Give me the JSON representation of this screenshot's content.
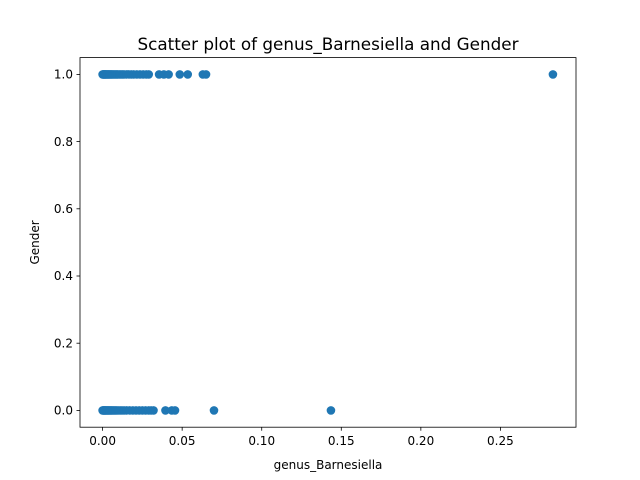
{
  "chart_data": {
    "type": "scatter",
    "title": "Scatter plot of genus_Barnesiella and Gender",
    "xlabel": "genus_Barnesiella",
    "ylabel": "Gender",
    "xlim": [
      -0.0142,
      0.2975
    ],
    "ylim": [
      -0.05,
      1.05
    ],
    "xticks": [
      0.0,
      0.05,
      0.1,
      0.15,
      0.2,
      0.25
    ],
    "xtick_labels": [
      "0.00",
      "0.05",
      "0.10",
      "0.15",
      "0.20",
      "0.25"
    ],
    "yticks": [
      0.0,
      0.2,
      0.4,
      0.6,
      0.8,
      1.0
    ],
    "ytick_labels": [
      "0.0",
      "0.2",
      "0.4",
      "0.6",
      "0.8",
      "1.0"
    ],
    "grid": false,
    "marker_color": "#1f77b4",
    "points": [
      {
        "x": 0.0,
        "y": 1
      },
      {
        "x": 0.0004,
        "y": 1
      },
      {
        "x": 0.0008,
        "y": 1
      },
      {
        "x": 0.0012,
        "y": 1
      },
      {
        "x": 0.0016,
        "y": 1
      },
      {
        "x": 0.002,
        "y": 1
      },
      {
        "x": 0.0025,
        "y": 1
      },
      {
        "x": 0.003,
        "y": 1
      },
      {
        "x": 0.0035,
        "y": 1
      },
      {
        "x": 0.004,
        "y": 1
      },
      {
        "x": 0.0046,
        "y": 1
      },
      {
        "x": 0.0052,
        "y": 1
      },
      {
        "x": 0.0058,
        "y": 1
      },
      {
        "x": 0.0065,
        "y": 1
      },
      {
        "x": 0.0072,
        "y": 1
      },
      {
        "x": 0.008,
        "y": 1
      },
      {
        "x": 0.0088,
        "y": 1
      },
      {
        "x": 0.0095,
        "y": 1
      },
      {
        "x": 0.0105,
        "y": 1
      },
      {
        "x": 0.0115,
        "y": 1
      },
      {
        "x": 0.0125,
        "y": 1
      },
      {
        "x": 0.0135,
        "y": 1
      },
      {
        "x": 0.015,
        "y": 1
      },
      {
        "x": 0.0165,
        "y": 1
      },
      {
        "x": 0.018,
        "y": 1
      },
      {
        "x": 0.0195,
        "y": 1
      },
      {
        "x": 0.0215,
        "y": 1
      },
      {
        "x": 0.0235,
        "y": 1
      },
      {
        "x": 0.0255,
        "y": 1
      },
      {
        "x": 0.0275,
        "y": 1
      },
      {
        "x": 0.029,
        "y": 1
      },
      {
        "x": 0.0355,
        "y": 1
      },
      {
        "x": 0.0385,
        "y": 1
      },
      {
        "x": 0.0415,
        "y": 1
      },
      {
        "x": 0.0485,
        "y": 1
      },
      {
        "x": 0.0535,
        "y": 1
      },
      {
        "x": 0.063,
        "y": 1
      },
      {
        "x": 0.065,
        "y": 1
      },
      {
        "x": 0.283,
        "y": 1
      },
      {
        "x": 0.0,
        "y": 0
      },
      {
        "x": 0.0004,
        "y": 0
      },
      {
        "x": 0.0008,
        "y": 0
      },
      {
        "x": 0.0012,
        "y": 0
      },
      {
        "x": 0.0016,
        "y": 0
      },
      {
        "x": 0.002,
        "y": 0
      },
      {
        "x": 0.0025,
        "y": 0
      },
      {
        "x": 0.003,
        "y": 0
      },
      {
        "x": 0.0035,
        "y": 0
      },
      {
        "x": 0.004,
        "y": 0
      },
      {
        "x": 0.0046,
        "y": 0
      },
      {
        "x": 0.0052,
        "y": 0
      },
      {
        "x": 0.0058,
        "y": 0
      },
      {
        "x": 0.0065,
        "y": 0
      },
      {
        "x": 0.0072,
        "y": 0
      },
      {
        "x": 0.008,
        "y": 0
      },
      {
        "x": 0.0088,
        "y": 0
      },
      {
        "x": 0.0098,
        "y": 0
      },
      {
        "x": 0.011,
        "y": 0
      },
      {
        "x": 0.0122,
        "y": 0
      },
      {
        "x": 0.0135,
        "y": 0
      },
      {
        "x": 0.015,
        "y": 0
      },
      {
        "x": 0.017,
        "y": 0
      },
      {
        "x": 0.019,
        "y": 0
      },
      {
        "x": 0.021,
        "y": 0
      },
      {
        "x": 0.023,
        "y": 0
      },
      {
        "x": 0.025,
        "y": 0
      },
      {
        "x": 0.027,
        "y": 0
      },
      {
        "x": 0.029,
        "y": 0
      },
      {
        "x": 0.0305,
        "y": 0
      },
      {
        "x": 0.032,
        "y": 0
      },
      {
        "x": 0.0395,
        "y": 0
      },
      {
        "x": 0.0435,
        "y": 0
      },
      {
        "x": 0.0455,
        "y": 0
      },
      {
        "x": 0.07,
        "y": 0
      },
      {
        "x": 0.1435,
        "y": 0
      }
    ]
  }
}
